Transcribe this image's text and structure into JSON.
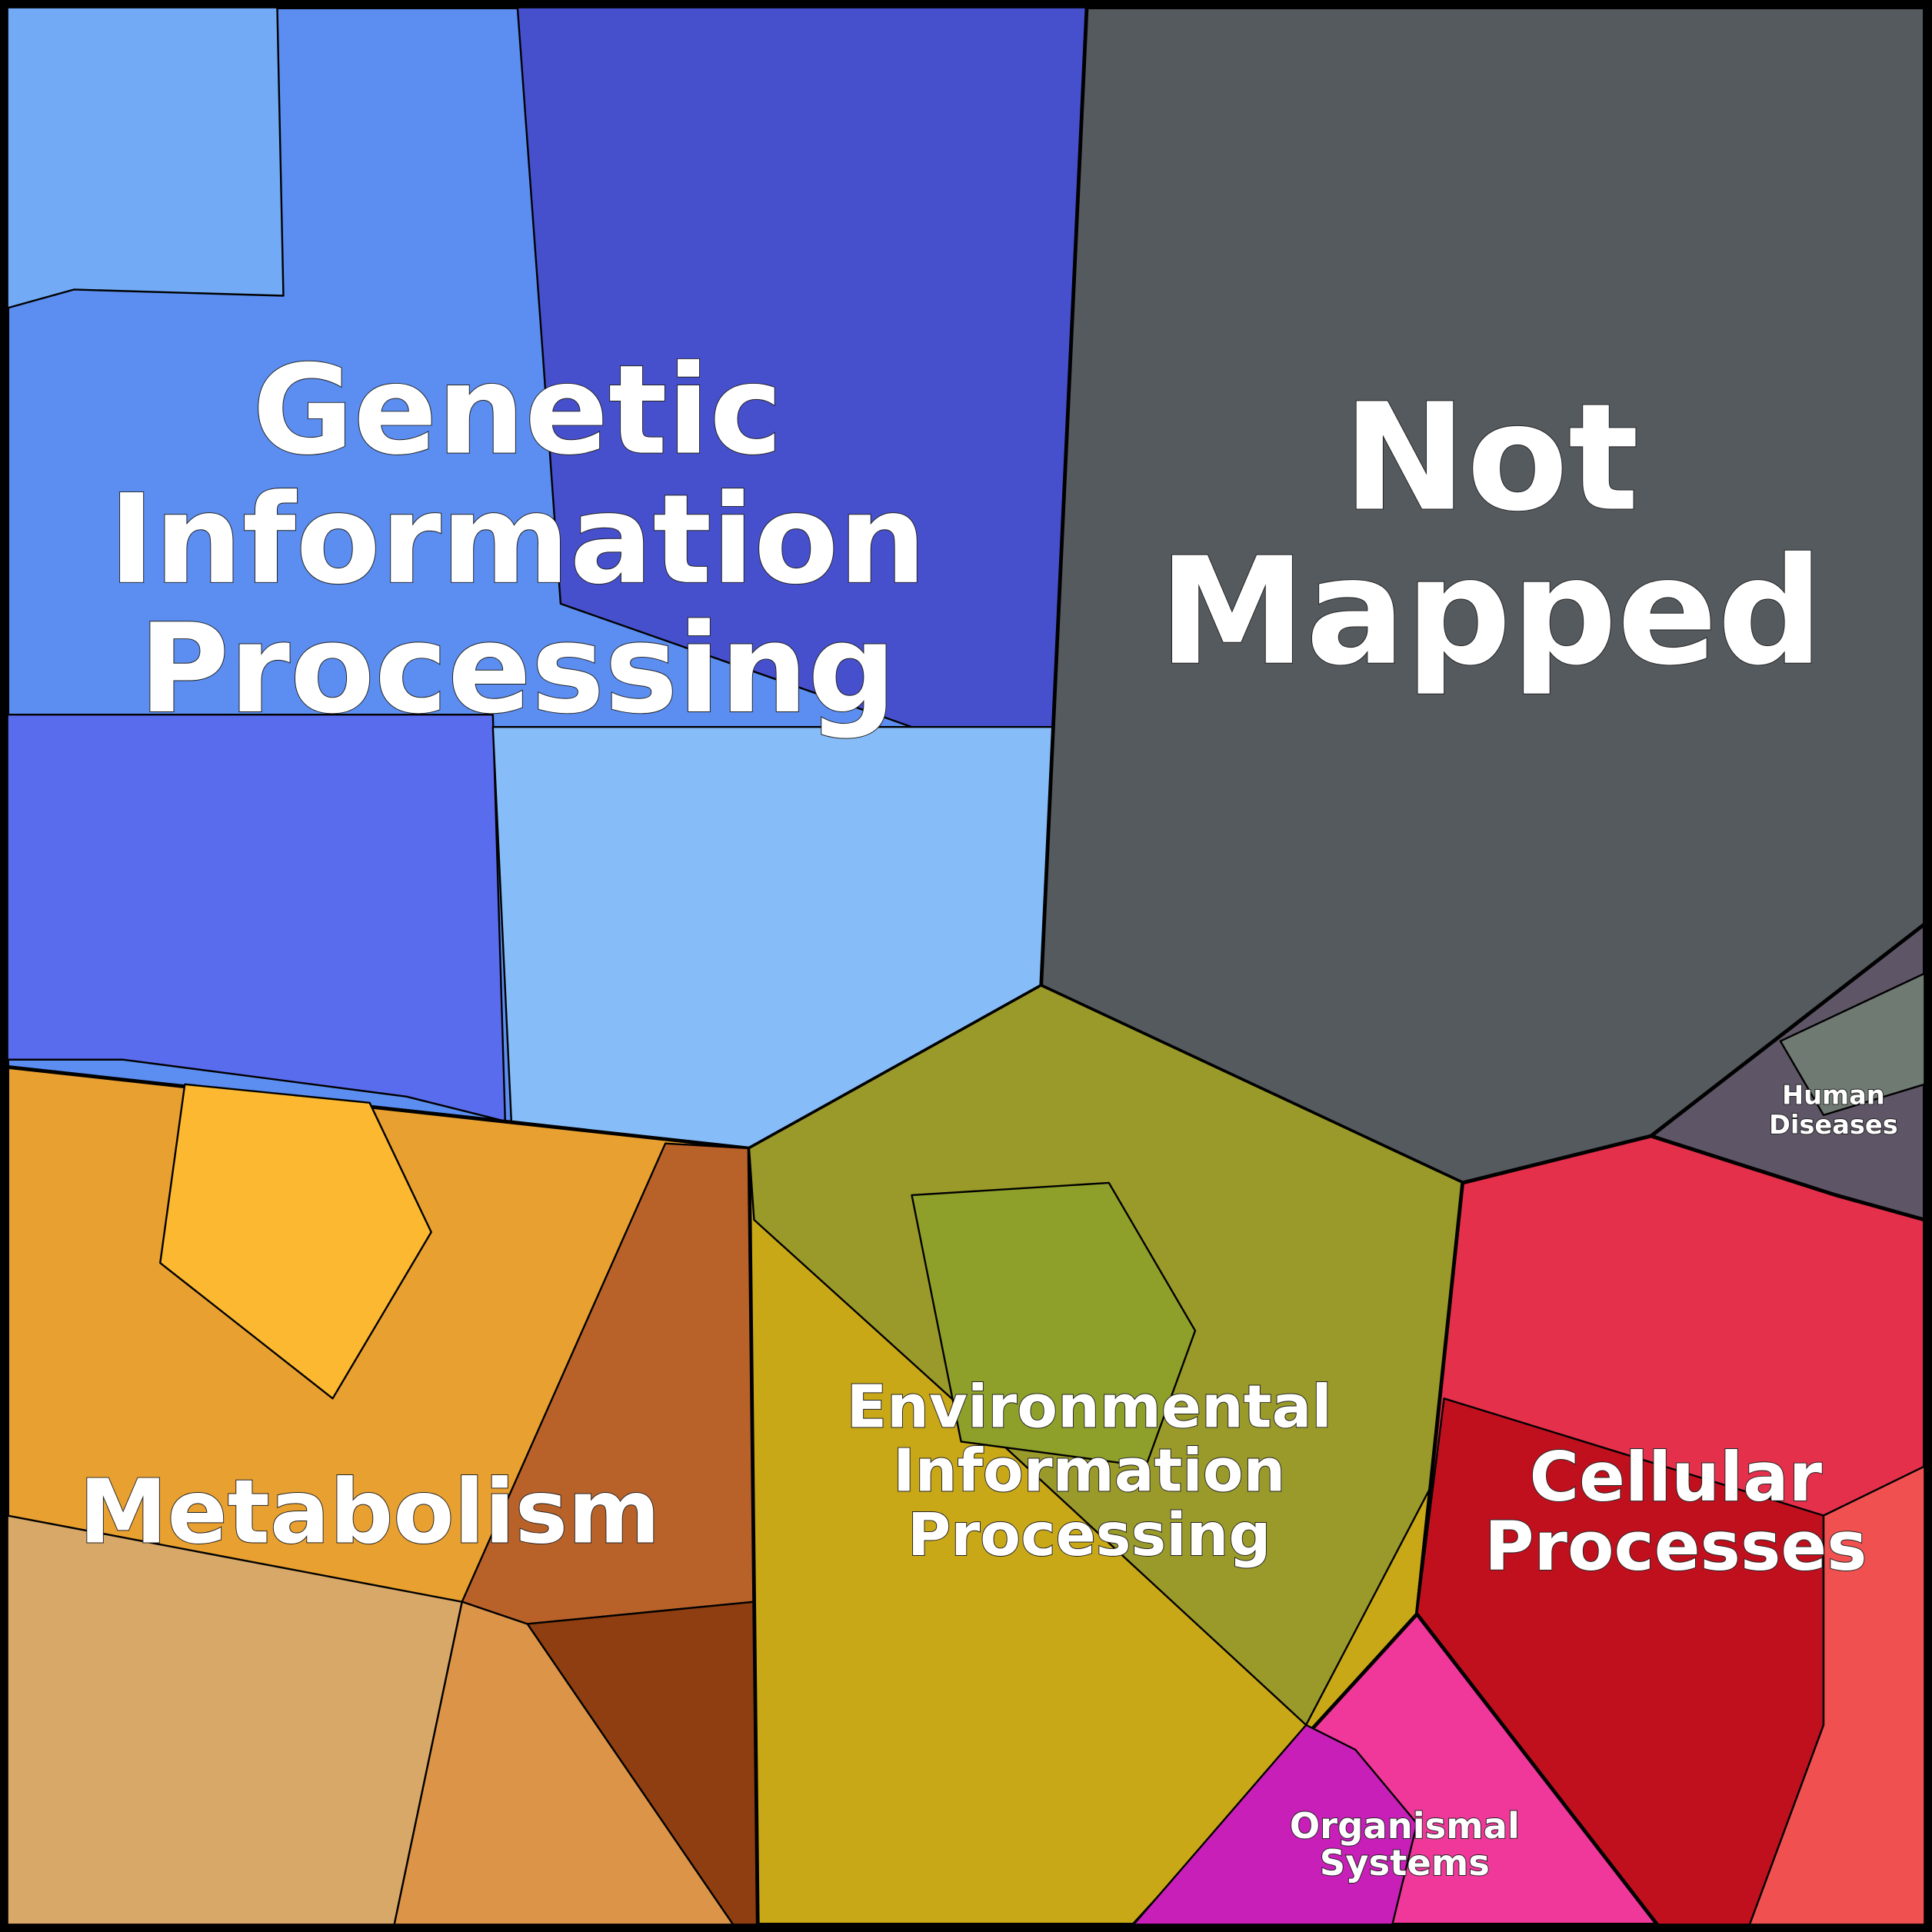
{
  "regions": [
    {
      "label": [
        "Genetic",
        "Information",
        "Processing"
      ]
    },
    {
      "label": [
        "Not",
        "Mapped"
      ]
    },
    {
      "label": [
        "Metabolism"
      ]
    },
    {
      "label": [
        "Environmental",
        "Information",
        "Processing"
      ]
    },
    {
      "label": [
        "Cellular",
        "Processes"
      ]
    },
    {
      "label": [
        "Human",
        "Diseases"
      ]
    },
    {
      "label": [
        "Organismal",
        "Systems"
      ]
    }
  ]
}
